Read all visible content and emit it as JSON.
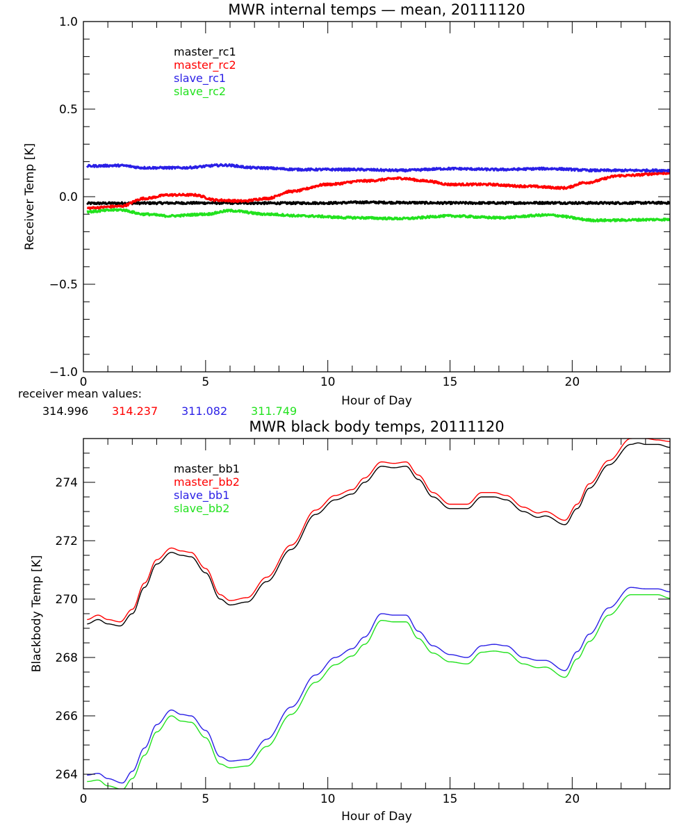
{
  "colors": {
    "black": "#000000",
    "red": "#ff0000",
    "blue": "#2a1fe6",
    "green": "#22e21e",
    "axis": "#000000",
    "background": "#ffffff"
  },
  "chart_data": [
    {
      "type": "line",
      "title": "MWR internal temps — mean, 20111120",
      "xlabel": "Hour of Day",
      "ylabel": "Receiver Temp [K]",
      "xlim": [
        0,
        24
      ],
      "ylim": [
        -1.0,
        1.0
      ],
      "xticks": [
        0,
        5,
        10,
        15,
        20
      ],
      "xtick_labels": [
        "0",
        "5",
        "10",
        "15",
        "20"
      ],
      "xminor_step": 1,
      "yticks": [
        -1.0,
        -0.5,
        0.0,
        0.5,
        1.0
      ],
      "ytick_labels": [
        "−1.0",
        "−0.5",
        "0.0",
        "0.5",
        "1.0"
      ],
      "yminor_step": 0.1,
      "grid": false,
      "legend_position": "top-left (inside)",
      "line_style": "thick, noisy",
      "series": [
        {
          "name": "master_rc1",
          "color": "black",
          "x": [
            0.15,
            2,
            4,
            6,
            8,
            10,
            11.5,
            13,
            15,
            17,
            19,
            21,
            24
          ],
          "y": [
            -0.038,
            -0.037,
            -0.036,
            -0.036,
            -0.037,
            -0.036,
            -0.032,
            -0.034,
            -0.036,
            -0.036,
            -0.035,
            -0.036,
            -0.035
          ]
        },
        {
          "name": "master_rc2",
          "color": "red",
          "x": [
            0.15,
            1.5,
            2.5,
            3.5,
            4.5,
            5.5,
            6.5,
            7.5,
            8.5,
            10,
            11.5,
            13,
            14,
            15,
            16.5,
            18,
            19.7,
            20.5,
            22,
            24
          ],
          "y": [
            -0.065,
            -0.055,
            -0.01,
            0.01,
            0.01,
            -0.02,
            -0.025,
            -0.01,
            0.03,
            0.07,
            0.09,
            0.105,
            0.09,
            0.07,
            0.07,
            0.06,
            0.05,
            0.08,
            0.12,
            0.135
          ]
        },
        {
          "name": "slave_rc1",
          "color": "blue",
          "x": [
            0.15,
            1.5,
            2.5,
            4,
            5.8,
            7,
            9,
            11,
            13,
            15,
            17,
            19,
            21,
            24
          ],
          "y": [
            0.175,
            0.178,
            0.165,
            0.165,
            0.18,
            0.165,
            0.155,
            0.155,
            0.15,
            0.16,
            0.155,
            0.16,
            0.15,
            0.15
          ]
        },
        {
          "name": "slave_rc2",
          "color": "green",
          "x": [
            0.15,
            1.5,
            2.5,
            3.5,
            5,
            6,
            7.5,
            9,
            11,
            13,
            15,
            17,
            19,
            21,
            24
          ],
          "y": [
            -0.085,
            -0.075,
            -0.1,
            -0.11,
            -0.1,
            -0.08,
            -0.1,
            -0.11,
            -0.12,
            -0.125,
            -0.11,
            -0.12,
            -0.105,
            -0.135,
            -0.13
          ]
        }
      ],
      "annotation": {
        "label": "receiver mean values:",
        "values": [
          {
            "text": "314.996",
            "color": "black"
          },
          {
            "text": "314.237",
            "color": "red"
          },
          {
            "text": "311.082",
            "color": "blue"
          },
          {
            "text": "311.749",
            "color": "green"
          }
        ]
      }
    },
    {
      "type": "line",
      "title": "MWR black body temps, 20111120",
      "xlabel": "Hour of Day",
      "ylabel": "Blackbody Temp [K]",
      "xlim": [
        0,
        24
      ],
      "ylim": [
        263.5,
        275.5
      ],
      "xticks": [
        0,
        5,
        10,
        15,
        20
      ],
      "xtick_labels": [
        "0",
        "5",
        "10",
        "15",
        "20"
      ],
      "xminor_step": 1,
      "yticks": [
        264,
        266,
        268,
        270,
        272,
        274
      ],
      "ytick_labels": [
        "264",
        "266",
        "268",
        "270",
        "272",
        "274"
      ],
      "yminor_step": 0.5,
      "grid": false,
      "legend_position": "top-left (inside)",
      "line_style": "thin",
      "series": [
        {
          "name": "master_bb1",
          "color": "black",
          "x": [
            0.15,
            0.6,
            1.0,
            1.5,
            2.0,
            2.5,
            3.0,
            3.6,
            4.0,
            4.4,
            5.0,
            5.6,
            6.0,
            6.7,
            7.5,
            8.5,
            9.5,
            10.3,
            11.0,
            11.5,
            12.2,
            12.7,
            13.2,
            13.7,
            14.3,
            15.0,
            15.7,
            16.3,
            16.8,
            17.3,
            18.0,
            18.6,
            18.9,
            19.7,
            20.2,
            20.7,
            21.5,
            22.4,
            22.7,
            23.0,
            23.5,
            24.0
          ],
          "y": [
            269.15,
            269.3,
            269.15,
            269.08,
            269.5,
            270.4,
            271.2,
            271.6,
            271.5,
            271.45,
            270.9,
            270.0,
            269.8,
            269.9,
            270.6,
            271.7,
            272.9,
            273.4,
            273.6,
            274.0,
            274.55,
            274.5,
            274.55,
            274.1,
            273.5,
            273.1,
            273.1,
            273.5,
            273.5,
            273.4,
            273.0,
            272.8,
            272.85,
            272.55,
            273.1,
            273.8,
            274.6,
            275.3,
            275.35,
            275.3,
            275.3,
            275.2
          ]
        },
        {
          "name": "master_bb2",
          "color": "red",
          "x": [
            0.15,
            0.6,
            1.0,
            1.5,
            2.0,
            2.5,
            3.0,
            3.6,
            4.0,
            4.4,
            5.0,
            5.6,
            6.0,
            6.7,
            7.5,
            8.5,
            9.5,
            10.3,
            11.0,
            11.5,
            12.2,
            12.7,
            13.2,
            13.7,
            14.3,
            15.0,
            15.7,
            16.3,
            16.8,
            17.3,
            18.0,
            18.6,
            18.9,
            19.7,
            20.2,
            20.7,
            21.5,
            22.4,
            22.7,
            23.0,
            23.5,
            24.0
          ],
          "y": [
            269.3,
            269.45,
            269.3,
            269.22,
            269.65,
            270.55,
            271.35,
            271.75,
            271.65,
            271.6,
            271.05,
            270.15,
            269.95,
            270.05,
            270.75,
            271.85,
            273.05,
            273.55,
            273.75,
            274.15,
            274.7,
            274.65,
            274.7,
            274.25,
            273.65,
            273.25,
            273.25,
            273.65,
            273.65,
            273.55,
            273.15,
            272.95,
            273.0,
            272.7,
            273.25,
            273.95,
            274.75,
            275.5,
            275.55,
            275.5,
            275.45,
            275.4
          ]
        },
        {
          "name": "slave_bb1",
          "color": "blue",
          "x": [
            0.15,
            0.6,
            1.0,
            1.6,
            2.0,
            2.5,
            3.0,
            3.6,
            4.0,
            4.4,
            5.0,
            5.6,
            6.0,
            6.7,
            7.5,
            8.5,
            9.5,
            10.3,
            11.0,
            11.5,
            12.2,
            12.7,
            13.2,
            13.7,
            14.3,
            15.0,
            15.7,
            16.3,
            16.8,
            17.3,
            18.0,
            18.6,
            18.9,
            19.7,
            20.2,
            20.7,
            21.5,
            22.4,
            23.0,
            23.5,
            24.0
          ],
          "y": [
            263.97,
            264.03,
            263.85,
            263.7,
            264.1,
            264.9,
            265.7,
            266.2,
            266.05,
            266.0,
            265.5,
            264.6,
            264.45,
            264.5,
            265.2,
            266.3,
            267.4,
            268.0,
            268.3,
            268.7,
            269.5,
            269.45,
            269.45,
            268.9,
            268.4,
            268.1,
            268.0,
            268.4,
            268.45,
            268.4,
            268.0,
            267.9,
            267.9,
            267.55,
            268.2,
            268.8,
            269.7,
            270.4,
            270.35,
            270.35,
            270.25
          ]
        },
        {
          "name": "slave_bb2",
          "color": "green",
          "x": [
            0.15,
            0.6,
            1.0,
            1.6,
            2.0,
            2.5,
            3.0,
            3.6,
            4.0,
            4.4,
            5.0,
            5.6,
            6.0,
            6.7,
            7.5,
            8.5,
            9.5,
            10.3,
            11.0,
            11.5,
            12.2,
            12.7,
            13.2,
            13.7,
            14.3,
            15.0,
            15.7,
            16.3,
            16.8,
            17.3,
            18.0,
            18.6,
            18.9,
            19.7,
            20.2,
            20.7,
            21.5,
            22.4,
            23.0,
            23.5,
            24.0
          ],
          "y": [
            263.75,
            263.8,
            263.6,
            263.48,
            263.85,
            264.65,
            265.45,
            266.0,
            265.82,
            265.78,
            265.25,
            264.35,
            264.22,
            264.28,
            264.95,
            266.05,
            267.15,
            267.75,
            268.05,
            268.45,
            269.27,
            269.22,
            269.22,
            268.65,
            268.15,
            267.85,
            267.78,
            268.18,
            268.22,
            268.17,
            267.78,
            267.65,
            267.67,
            267.32,
            267.95,
            268.55,
            269.45,
            270.15,
            270.15,
            270.15,
            270.03
          ]
        }
      ]
    }
  ]
}
